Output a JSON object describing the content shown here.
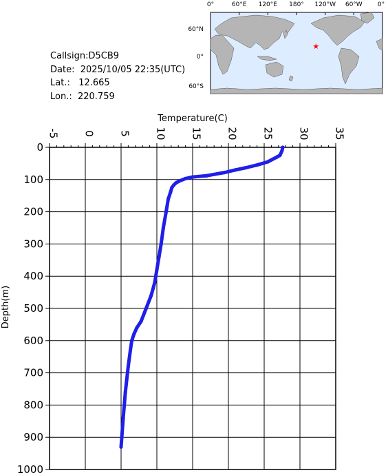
{
  "info": {
    "callsign": "Callsign:D5CB9",
    "date": "Date:  2025/10/05 22:35(UTC)",
    "lat": "Lat.:   12.665",
    "lon": "Lon.:  220.759"
  },
  "map": {
    "top_labels": [
      "0°",
      "60°E",
      "120°E",
      "180°",
      "120°W",
      "60°W",
      "0°"
    ],
    "side_labels": [
      "60°N",
      "0°",
      "60°S"
    ],
    "marker": {
      "lat": 12.665,
      "lon": 220.759
    },
    "colors": {
      "ocean": "#ddecff",
      "land": "#b5b5b5",
      "marker": "#ff0000"
    }
  },
  "chart_data": {
    "type": "line",
    "title": "",
    "xlabel": "Temperature(C)",
    "ylabel": "Depth(m)",
    "xlim": [
      -5,
      35
    ],
    "ylim": [
      0,
      1000
    ],
    "y_inverted": true,
    "x_axis_position": "top",
    "x_ticks": [
      "-5",
      "0",
      "5",
      "10",
      "15",
      "20",
      "25",
      "30",
      "35"
    ],
    "y_ticks": [
      "0",
      "100",
      "200",
      "300",
      "400",
      "500",
      "600",
      "700",
      "800",
      "900",
      "1000"
    ],
    "grid": true,
    "series_color": "#1f1fe8",
    "series": [
      {
        "x": [
          27.6,
          27.5,
          27.2,
          26.8,
          25.5,
          24.0,
          22.5,
          21.0,
          19.5,
          17.0,
          15.0,
          14.0,
          13.2,
          12.7,
          12.4,
          12.1,
          11.9,
          11.6,
          11.3,
          10.9,
          10.6,
          10.3,
          10.0,
          9.7,
          9.2,
          8.5,
          7.8,
          7.2,
          6.8,
          6.5,
          6.3,
          6.0,
          5.6,
          5.3,
          5.0
        ],
        "y": [
          0,
          10,
          25,
          30,
          45,
          55,
          63,
          70,
          78,
          88,
          92,
          97,
          104,
          110,
          116,
          125,
          140,
          160,
          200,
          250,
          300,
          340,
          380,
          420,
          460,
          500,
          540,
          560,
          580,
          600,
          630,
          680,
          760,
          840,
          930
        ]
      }
    ]
  }
}
